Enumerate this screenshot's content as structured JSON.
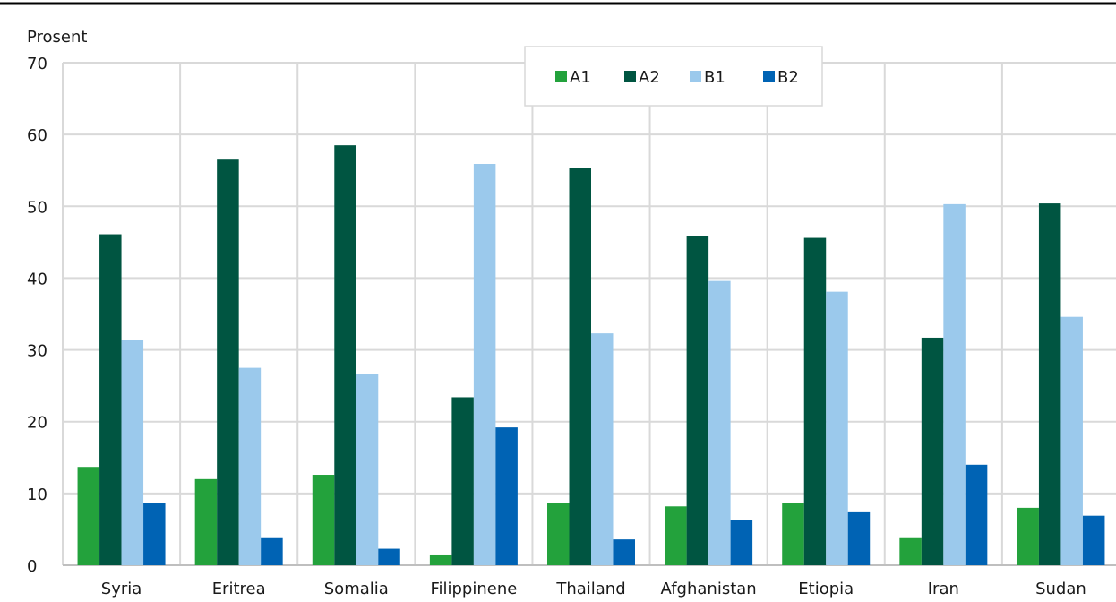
{
  "chart_data": {
    "type": "bar",
    "title": "",
    "xlabel": "",
    "ylabel": "Prosent",
    "ylim": [
      0,
      70
    ],
    "yticks": [
      0,
      10,
      20,
      30,
      40,
      50,
      60,
      70
    ],
    "grid": true,
    "legend_position": "top-center",
    "categories": [
      "Syria",
      "Eritrea",
      "Somalia",
      "Filippinene",
      "Thailand",
      "Afghanistan",
      "Etiopia",
      "Iran",
      "Sudan"
    ],
    "series": [
      {
        "name": "A1",
        "color": "#23a23c",
        "values": [
          13.7,
          12.0,
          12.6,
          1.5,
          8.7,
          8.2,
          8.7,
          3.9,
          8.0
        ]
      },
      {
        "name": "A2",
        "color": "#005541",
        "values": [
          46.1,
          56.5,
          58.5,
          23.4,
          55.3,
          45.9,
          45.6,
          31.7,
          50.4
        ]
      },
      {
        "name": "B1",
        "color": "#9bc9ec",
        "values": [
          31.4,
          27.5,
          26.6,
          55.9,
          32.3,
          39.6,
          38.1,
          50.3,
          34.6
        ]
      },
      {
        "name": "B2",
        "color": "#0063b4",
        "values": [
          8.7,
          3.9,
          2.3,
          19.2,
          3.6,
          6.3,
          7.5,
          14.0,
          6.9
        ]
      }
    ]
  }
}
